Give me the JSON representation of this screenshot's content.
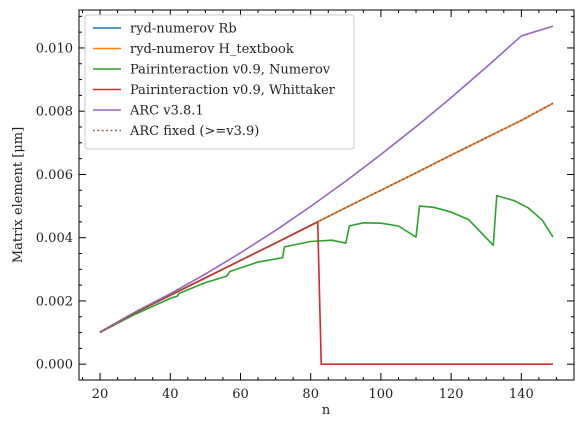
{
  "chart_data": {
    "type": "line",
    "title": "",
    "xlabel": "n",
    "ylabel": "Matrix element [μm]",
    "xlim": [
      14,
      155
    ],
    "ylim": [
      -0.0005,
      0.0112
    ],
    "xticks": [
      20,
      40,
      60,
      80,
      100,
      120,
      140
    ],
    "xtick_labels": [
      "20",
      "40",
      "60",
      "80",
      "100",
      "120",
      "140"
    ],
    "yticks": [
      0.0,
      0.002,
      0.004,
      0.006,
      0.008,
      0.01
    ],
    "ytick_labels": [
      "0.000",
      "0.002",
      "0.004",
      "0.006",
      "0.008",
      "0.010"
    ],
    "legend_position": "top-left",
    "series": [
      {
        "name": "ryd-numerov Rb",
        "color": "#1f77b4",
        "style": "solid",
        "x": [
          20,
          30,
          40,
          50,
          60,
          70,
          80,
          90,
          100,
          110,
          120,
          130,
          140,
          149
        ],
        "y": [
          0.00101,
          0.00163,
          0.00218,
          0.00273,
          0.00328,
          0.00383,
          0.00439,
          0.00495,
          0.0055,
          0.00605,
          0.00661,
          0.00716,
          0.00771,
          0.00825
        ]
      },
      {
        "name": "ryd-numerov H_textbook",
        "color": "#ff7f0e",
        "style": "solid",
        "x": [
          20,
          30,
          40,
          50,
          60,
          70,
          80,
          90,
          100,
          110,
          120,
          130,
          140,
          149
        ],
        "y": [
          0.00101,
          0.00163,
          0.00218,
          0.00273,
          0.00328,
          0.00383,
          0.00439,
          0.00495,
          0.0055,
          0.00605,
          0.00661,
          0.00716,
          0.00771,
          0.00825
        ]
      },
      {
        "name": "Pairinteraction v0.9, Numerov",
        "color": "#2ca02c",
        "style": "solid",
        "x": [
          20,
          30,
          40,
          42,
          42.5,
          50,
          56,
          57,
          65,
          72,
          72.5,
          80,
          86,
          90,
          91,
          95,
          100,
          105,
          110,
          111,
          115,
          120,
          125,
          132,
          133,
          138,
          142,
          146,
          149
        ],
        "y": [
          0.00101,
          0.00158,
          0.00208,
          0.00215,
          0.00224,
          0.00258,
          0.00278,
          0.00293,
          0.00323,
          0.00337,
          0.00371,
          0.00388,
          0.00392,
          0.00383,
          0.00437,
          0.00447,
          0.00446,
          0.00437,
          0.00402,
          0.005,
          0.00496,
          0.00481,
          0.00457,
          0.00376,
          0.00533,
          0.00517,
          0.00494,
          0.00455,
          0.00402
        ]
      },
      {
        "name": "Pairinteraction v0.9, Whittaker",
        "color": "#d62728",
        "style": "solid",
        "x": [
          20,
          30,
          40,
          50,
          60,
          70,
          80,
          82,
          83,
          149
        ],
        "y": [
          0.00101,
          0.00163,
          0.00218,
          0.00273,
          0.00328,
          0.00383,
          0.00439,
          0.0045,
          0.0,
          0.0
        ]
      },
      {
        "name": "ARC v3.8.1",
        "color": "#9467bd",
        "style": "solid",
        "x": [
          20,
          30,
          40,
          50,
          60,
          70,
          80,
          90,
          100,
          110,
          120,
          130,
          140,
          149
        ],
        "y": [
          0.00102,
          0.00165,
          0.00223,
          0.00285,
          0.00352,
          0.00423,
          0.00499,
          0.00579,
          0.00663,
          0.00751,
          0.00843,
          0.00939,
          0.01038,
          0.01069
        ]
      },
      {
        "name": "ARC fixed (>=v3.9)",
        "color": "#8c564b",
        "style": "dotted",
        "x": [
          20,
          30,
          40,
          50,
          60,
          70,
          80,
          90,
          100,
          110,
          120,
          130,
          140,
          149
        ],
        "y": [
          0.00101,
          0.00163,
          0.00218,
          0.00273,
          0.00328,
          0.00383,
          0.00439,
          0.00495,
          0.0055,
          0.00605,
          0.00661,
          0.00716,
          0.00771,
          0.00825
        ]
      }
    ]
  }
}
